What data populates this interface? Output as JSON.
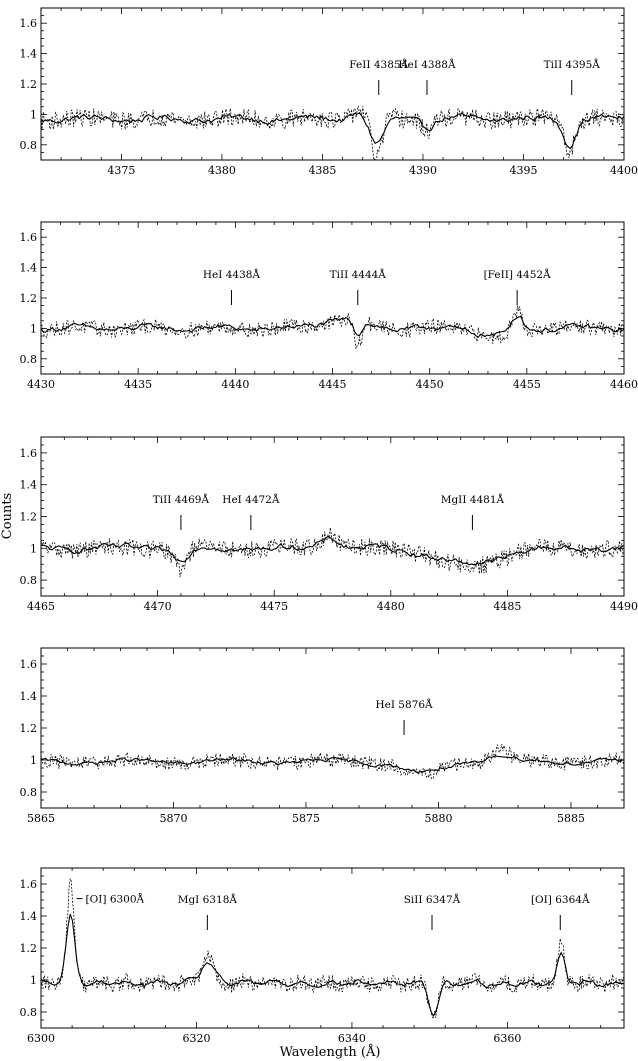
{
  "figure": {
    "ylabel": "Counts",
    "xlabel": "Wavelength (Å)"
  },
  "chart_data": [
    {
      "type": "line",
      "xlim": [
        4371,
        4400
      ],
      "ylim": [
        0.7,
        1.7
      ],
      "x_ticks": [
        4375,
        4380,
        4385,
        4390,
        4395,
        4400
      ],
      "y_ticks": [
        0.8,
        1,
        1.2,
        1.4,
        1.6
      ],
      "grid": false,
      "series": [
        {
          "style": "solid",
          "baseline": 0.97,
          "noise": 0.025,
          "features": [
            [
              4387.7,
              -0.17,
              0.35
            ],
            [
              4390.2,
              -0.05,
              0.3
            ],
            [
              4397.3,
              -0.16,
              0.3
            ],
            [
              4386.8,
              0.04,
              0.4
            ]
          ]
        },
        {
          "style": "dotted",
          "baseline": 0.97,
          "noise": 0.06,
          "features": [
            [
              4387.7,
              -0.27,
              0.25
            ],
            [
              4390.2,
              -0.07,
              0.25
            ],
            [
              4397.3,
              -0.22,
              0.22
            ],
            [
              4386.8,
              0.07,
              0.3
            ]
          ]
        }
      ],
      "annotations": [
        {
          "text": "FeII 4385Å",
          "x": 4387.8
        },
        {
          "text": "HeI 4388Å",
          "x": 4390.2
        },
        {
          "text": "TiII 4395Å",
          "x": 4397.4
        }
      ]
    },
    {
      "type": "line",
      "xlim": [
        4430,
        4460
      ],
      "ylim": [
        0.7,
        1.7
      ],
      "x_ticks": [
        4430,
        4435,
        4440,
        4445,
        4450,
        4455,
        4460
      ],
      "y_ticks": [
        0.8,
        1,
        1.2,
        1.4,
        1.6
      ],
      "grid": false,
      "series": [
        {
          "style": "solid",
          "baseline": 1.0,
          "noise": 0.022,
          "features": [
            [
              4445.5,
              0.06,
              1.0
            ],
            [
              4446.3,
              -0.09,
              0.2
            ],
            [
              4453.4,
              -0.05,
              0.8
            ],
            [
              4454.5,
              0.1,
              0.3
            ]
          ]
        },
        {
          "style": "dotted",
          "baseline": 1.0,
          "noise": 0.05,
          "features": [
            [
              4445.5,
              0.06,
              1.0
            ],
            [
              4446.3,
              -0.17,
              0.2
            ],
            [
              4453.4,
              -0.06,
              0.8
            ],
            [
              4454.5,
              0.13,
              0.25
            ]
          ]
        }
      ],
      "annotations": [
        {
          "text": "HeI 4438Å",
          "x": 4439.8
        },
        {
          "text": "TiII 4444Å",
          "x": 4446.3
        },
        {
          "text": "[FeII] 4452Å",
          "x": 4454.5
        }
      ]
    },
    {
      "type": "line",
      "xlim": [
        4465,
        4490
      ],
      "ylim": [
        0.7,
        1.7
      ],
      "x_ticks": [
        4465,
        4470,
        4475,
        4480,
        4485,
        4490
      ],
      "y_ticks": [
        0.8,
        1,
        1.2,
        1.4,
        1.6
      ],
      "grid": false,
      "series": [
        {
          "style": "solid",
          "baseline": 1.0,
          "noise": 0.022,
          "features": [
            [
              4471.0,
              -0.08,
              0.3
            ],
            [
              4477.4,
              0.07,
              0.4
            ],
            [
              4483.3,
              -0.1,
              1.3
            ]
          ]
        },
        {
          "style": "dotted",
          "baseline": 1.0,
          "noise": 0.055,
          "features": [
            [
              4471.0,
              -0.13,
              0.25
            ],
            [
              4477.4,
              0.09,
              0.35
            ],
            [
              4483.3,
              -0.12,
              1.2
            ]
          ]
        }
      ],
      "annotations": [
        {
          "text": "TiII 4469Å",
          "x": 4471.0
        },
        {
          "text": "HeI 4472Å",
          "x": 4474.0
        },
        {
          "text": "MgII 4481Å",
          "x": 4483.5
        }
      ]
    },
    {
      "type": "line",
      "xlim": [
        5865,
        5887
      ],
      "ylim": [
        0.7,
        1.7
      ],
      "x_ticks": [
        5865,
        5870,
        5875,
        5880,
        5885
      ],
      "y_ticks": [
        0.8,
        1,
        1.2,
        1.4,
        1.6
      ],
      "grid": false,
      "series": [
        {
          "style": "solid",
          "baseline": 0.99,
          "noise": 0.015,
          "features": [
            [
              5879.4,
              -0.07,
              0.8
            ],
            [
              5882.3,
              0.04,
              0.4
            ]
          ]
        },
        {
          "style": "dotted",
          "baseline": 0.99,
          "noise": 0.045,
          "features": [
            [
              5879.4,
              -0.09,
              0.7
            ],
            [
              5882.3,
              0.08,
              0.3
            ]
          ]
        }
      ],
      "annotations": [
        {
          "text": "HeI 5876Å",
          "x": 5878.7
        }
      ]
    },
    {
      "type": "line",
      "xlim": [
        6300,
        6375
      ],
      "ylim": [
        0.7,
        1.7
      ],
      "x_ticks": [
        6300,
        6320,
        6340,
        6360
      ],
      "y_ticks": [
        0.8,
        1,
        1.2,
        1.4,
        1.6
      ],
      "grid": false,
      "series": [
        {
          "style": "solid",
          "baseline": 0.98,
          "noise": 0.018,
          "features": [
            [
              6303.8,
              0.42,
              0.55
            ],
            [
              6321.4,
              0.13,
              0.9
            ],
            [
              6350.5,
              -0.19,
              0.6
            ],
            [
              6366.9,
              0.19,
              0.5
            ]
          ]
        },
        {
          "style": "dotted",
          "baseline": 0.98,
          "noise": 0.05,
          "features": [
            [
              6303.8,
              0.63,
              0.45
            ],
            [
              6321.4,
              0.16,
              0.7
            ],
            [
              6350.5,
              -0.22,
              0.5
            ],
            [
              6366.9,
              0.26,
              0.4
            ]
          ]
        }
      ],
      "annotations": [
        {
          "text": "[OI] 6300Å",
          "x": 6303.8,
          "position": "right-of-peak"
        },
        {
          "text": "MgI 6318Å",
          "x": 6321.4
        },
        {
          "text": "SiII 6347Å",
          "x": 6350.3
        },
        {
          "text": "[OI] 6364Å",
          "x": 6366.8
        }
      ]
    }
  ]
}
